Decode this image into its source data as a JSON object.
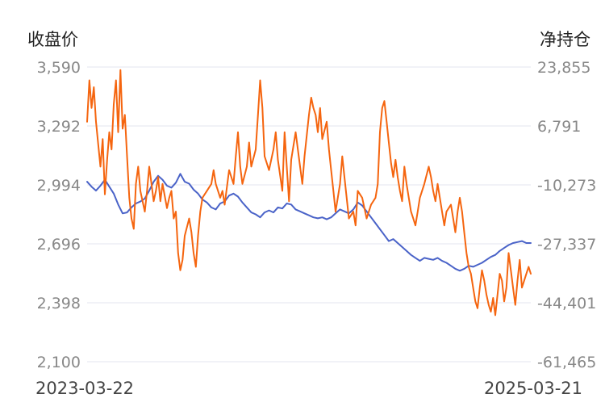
{
  "chart_data": {
    "type": "line",
    "left_axis_title": "收盘价",
    "right_axis_title": "净持仓",
    "left_axis": {
      "ticks": [
        "3,590",
        "3,292",
        "2,994",
        "2,696",
        "2,398",
        "2,100"
      ],
      "range": [
        2100,
        3590
      ]
    },
    "right_axis": {
      "ticks": [
        "23,855",
        "6,791",
        "-10,273",
        "-27,337",
        "-44,401",
        "-61,465"
      ],
      "range": [
        -61465,
        23855
      ]
    },
    "x_range": [
      "2023-03-22",
      "2025-03-21"
    ],
    "x_start_label": "2023-03-22",
    "x_end_label": "2025-03-21",
    "grid": true,
    "series": [
      {
        "name": "收盘价",
        "axis": "left",
        "color": "#4a63c8",
        "points": [
          [
            0,
            3010
          ],
          [
            0.01,
            2985
          ],
          [
            0.02,
            2965
          ],
          [
            0.03,
            2990
          ],
          [
            0.04,
            3020
          ],
          [
            0.05,
            2985
          ],
          [
            0.06,
            2950
          ],
          [
            0.07,
            2895
          ],
          [
            0.08,
            2850
          ],
          [
            0.09,
            2855
          ],
          [
            0.1,
            2880
          ],
          [
            0.11,
            2900
          ],
          [
            0.12,
            2910
          ],
          [
            0.13,
            2925
          ],
          [
            0.14,
            2965
          ],
          [
            0.15,
            3010
          ],
          [
            0.16,
            3040
          ],
          [
            0.17,
            3020
          ],
          [
            0.18,
            2990
          ],
          [
            0.19,
            2980
          ],
          [
            0.2,
            3005
          ],
          [
            0.21,
            3050
          ],
          [
            0.22,
            3010
          ],
          [
            0.23,
            3000
          ],
          [
            0.24,
            2970
          ],
          [
            0.25,
            2950
          ],
          [
            0.26,
            2920
          ],
          [
            0.27,
            2905
          ],
          [
            0.28,
            2880
          ],
          [
            0.29,
            2870
          ],
          [
            0.3,
            2900
          ],
          [
            0.31,
            2910
          ],
          [
            0.32,
            2940
          ],
          [
            0.33,
            2950
          ],
          [
            0.34,
            2935
          ],
          [
            0.35,
            2905
          ],
          [
            0.36,
            2880
          ],
          [
            0.37,
            2855
          ],
          [
            0.38,
            2845
          ],
          [
            0.39,
            2830
          ],
          [
            0.4,
            2855
          ],
          [
            0.41,
            2865
          ],
          [
            0.42,
            2855
          ],
          [
            0.43,
            2880
          ],
          [
            0.44,
            2875
          ],
          [
            0.45,
            2900
          ],
          [
            0.46,
            2895
          ],
          [
            0.47,
            2870
          ],
          [
            0.48,
            2860
          ],
          [
            0.49,
            2850
          ],
          [
            0.5,
            2840
          ],
          [
            0.51,
            2830
          ],
          [
            0.52,
            2825
          ],
          [
            0.53,
            2830
          ],
          [
            0.54,
            2820
          ],
          [
            0.55,
            2830
          ],
          [
            0.56,
            2850
          ],
          [
            0.57,
            2870
          ],
          [
            0.58,
            2860
          ],
          [
            0.59,
            2850
          ],
          [
            0.6,
            2870
          ],
          [
            0.61,
            2905
          ],
          [
            0.62,
            2890
          ],
          [
            0.63,
            2860
          ],
          [
            0.64,
            2830
          ],
          [
            0.65,
            2800
          ],
          [
            0.66,
            2770
          ],
          [
            0.67,
            2740
          ],
          [
            0.68,
            2710
          ],
          [
            0.69,
            2720
          ],
          [
            0.7,
            2700
          ],
          [
            0.71,
            2680
          ],
          [
            0.72,
            2660
          ],
          [
            0.73,
            2640
          ],
          [
            0.74,
            2625
          ],
          [
            0.75,
            2610
          ],
          [
            0.76,
            2625
          ],
          [
            0.77,
            2620
          ],
          [
            0.78,
            2615
          ],
          [
            0.79,
            2625
          ],
          [
            0.8,
            2610
          ],
          [
            0.81,
            2600
          ],
          [
            0.82,
            2585
          ],
          [
            0.83,
            2570
          ],
          [
            0.84,
            2560
          ],
          [
            0.85,
            2570
          ],
          [
            0.86,
            2585
          ],
          [
            0.87,
            2580
          ],
          [
            0.88,
            2590
          ],
          [
            0.89,
            2600
          ],
          [
            0.9,
            2615
          ],
          [
            0.91,
            2630
          ],
          [
            0.92,
            2640
          ],
          [
            0.93,
            2660
          ],
          [
            0.94,
            2675
          ],
          [
            0.95,
            2690
          ],
          [
            0.96,
            2700
          ],
          [
            0.97,
            2705
          ],
          [
            0.98,
            2710
          ],
          [
            0.99,
            2700
          ],
          [
            1.0,
            2700
          ]
        ]
      },
      {
        "name": "净持仓",
        "axis": "right",
        "color": "#f5650f",
        "points": [
          [
            0,
            8000
          ],
          [
            0.005,
            20000
          ],
          [
            0.01,
            12000
          ],
          [
            0.015,
            18000
          ],
          [
            0.02,
            8000
          ],
          [
            0.03,
            -5000
          ],
          [
            0.035,
            3000
          ],
          [
            0.04,
            -13000
          ],
          [
            0.045,
            -3000
          ],
          [
            0.05,
            5000
          ],
          [
            0.055,
            0
          ],
          [
            0.06,
            13000
          ],
          [
            0.065,
            20000
          ],
          [
            0.07,
            5000
          ],
          [
            0.075,
            23000
          ],
          [
            0.08,
            6000
          ],
          [
            0.085,
            10000
          ],
          [
            0.09,
            -2000
          ],
          [
            0.095,
            -14000
          ],
          [
            0.1,
            -20000
          ],
          [
            0.105,
            -23000
          ],
          [
            0.11,
            -10000
          ],
          [
            0.115,
            -5000
          ],
          [
            0.12,
            -12000
          ],
          [
            0.13,
            -18000
          ],
          [
            0.135,
            -12000
          ],
          [
            0.14,
            -5000
          ],
          [
            0.145,
            -10000
          ],
          [
            0.15,
            -15000
          ],
          [
            0.155,
            -12000
          ],
          [
            0.16,
            -8000
          ],
          [
            0.165,
            -15000
          ],
          [
            0.17,
            -10000
          ],
          [
            0.18,
            -17000
          ],
          [
            0.185,
            -14000
          ],
          [
            0.19,
            -12000
          ],
          [
            0.195,
            -20000
          ],
          [
            0.2,
            -18000
          ],
          [
            0.205,
            -30000
          ],
          [
            0.21,
            -35000
          ],
          [
            0.215,
            -32000
          ],
          [
            0.22,
            -25000
          ],
          [
            0.23,
            -20000
          ],
          [
            0.235,
            -24000
          ],
          [
            0.24,
            -30000
          ],
          [
            0.245,
            -34000
          ],
          [
            0.25,
            -25000
          ],
          [
            0.255,
            -18000
          ],
          [
            0.26,
            -14000
          ],
          [
            0.27,
            -12000
          ],
          [
            0.28,
            -10000
          ],
          [
            0.285,
            -6000
          ],
          [
            0.29,
            -10000
          ],
          [
            0.3,
            -14000
          ],
          [
            0.305,
            -12000
          ],
          [
            0.31,
            -16000
          ],
          [
            0.32,
            -6000
          ],
          [
            0.33,
            -10000
          ],
          [
            0.335,
            -2000
          ],
          [
            0.34,
            5000
          ],
          [
            0.345,
            -5000
          ],
          [
            0.35,
            -10000
          ],
          [
            0.36,
            -5000
          ],
          [
            0.365,
            2000
          ],
          [
            0.37,
            -5000
          ],
          [
            0.38,
            0
          ],
          [
            0.385,
            10000
          ],
          [
            0.39,
            20000
          ],
          [
            0.395,
            12000
          ],
          [
            0.4,
            -2000
          ],
          [
            0.41,
            -6000
          ],
          [
            0.42,
            0
          ],
          [
            0.425,
            5000
          ],
          [
            0.43,
            -3000
          ],
          [
            0.44,
            -12000
          ],
          [
            0.445,
            5000
          ],
          [
            0.45,
            -5000
          ],
          [
            0.455,
            -15000
          ],
          [
            0.46,
            -3000
          ],
          [
            0.47,
            5000
          ],
          [
            0.48,
            -5000
          ],
          [
            0.485,
            -10000
          ],
          [
            0.49,
            -2000
          ],
          [
            0.5,
            10000
          ],
          [
            0.505,
            15000
          ],
          [
            0.51,
            12000
          ],
          [
            0.515,
            10000
          ],
          [
            0.52,
            5000
          ],
          [
            0.525,
            12000
          ],
          [
            0.53,
            3000
          ],
          [
            0.54,
            8000
          ],
          [
            0.545,
            0
          ],
          [
            0.55,
            -6000
          ],
          [
            0.555,
            -12000
          ],
          [
            0.56,
            -18000
          ],
          [
            0.57,
            -10000
          ],
          [
            0.575,
            -2000
          ],
          [
            0.58,
            -8000
          ],
          [
            0.59,
            -20000
          ],
          [
            0.6,
            -18000
          ],
          [
            0.605,
            -22000
          ],
          [
            0.61,
            -12000
          ],
          [
            0.62,
            -14000
          ],
          [
            0.63,
            -20000
          ],
          [
            0.64,
            -16000
          ],
          [
            0.65,
            -14000
          ],
          [
            0.655,
            -10000
          ],
          [
            0.66,
            5000
          ],
          [
            0.665,
            12000
          ],
          [
            0.67,
            14000
          ],
          [
            0.675,
            8000
          ],
          [
            0.68,
            2000
          ],
          [
            0.685,
            -4000
          ],
          [
            0.69,
            -8000
          ],
          [
            0.695,
            -3000
          ],
          [
            0.7,
            -8000
          ],
          [
            0.705,
            -12000
          ],
          [
            0.71,
            -15000
          ],
          [
            0.715,
            -5000
          ],
          [
            0.72,
            -10000
          ],
          [
            0.73,
            -18000
          ],
          [
            0.735,
            -20000
          ],
          [
            0.74,
            -22000
          ],
          [
            0.745,
            -18000
          ],
          [
            0.75,
            -14000
          ],
          [
            0.76,
            -10000
          ],
          [
            0.77,
            -5000
          ],
          [
            0.775,
            -8000
          ],
          [
            0.78,
            -12000
          ],
          [
            0.785,
            -15000
          ],
          [
            0.79,
            -10000
          ],
          [
            0.8,
            -18000
          ],
          [
            0.805,
            -22000
          ],
          [
            0.81,
            -18000
          ],
          [
            0.82,
            -16000
          ],
          [
            0.825,
            -20000
          ],
          [
            0.83,
            -24000
          ],
          [
            0.835,
            -18000
          ],
          [
            0.84,
            -14000
          ],
          [
            0.845,
            -18000
          ],
          [
            0.85,
            -24000
          ],
          [
            0.855,
            -30000
          ],
          [
            0.86,
            -34000
          ],
          [
            0.865,
            -36000
          ],
          [
            0.87,
            -40000
          ],
          [
            0.875,
            -44000
          ],
          [
            0.88,
            -46000
          ],
          [
            0.885,
            -40000
          ],
          [
            0.89,
            -35000
          ],
          [
            0.895,
            -38000
          ],
          [
            0.9,
            -42000
          ],
          [
            0.905,
            -45000
          ],
          [
            0.91,
            -47000
          ],
          [
            0.915,
            -43000
          ],
          [
            0.92,
            -48000
          ],
          [
            0.925,
            -42000
          ],
          [
            0.93,
            -36000
          ],
          [
            0.935,
            -38000
          ],
          [
            0.94,
            -44000
          ],
          [
            0.945,
            -40000
          ],
          [
            0.95,
            -30000
          ],
          [
            0.955,
            -35000
          ],
          [
            0.96,
            -40000
          ],
          [
            0.965,
            -45000
          ],
          [
            0.97,
            -38000
          ],
          [
            0.975,
            -32000
          ],
          [
            0.98,
            -40000
          ],
          [
            0.985,
            -38000
          ],
          [
            0.99,
            -36000
          ],
          [
            0.995,
            -34000
          ],
          [
            1.0,
            -36000
          ]
        ]
      }
    ]
  }
}
